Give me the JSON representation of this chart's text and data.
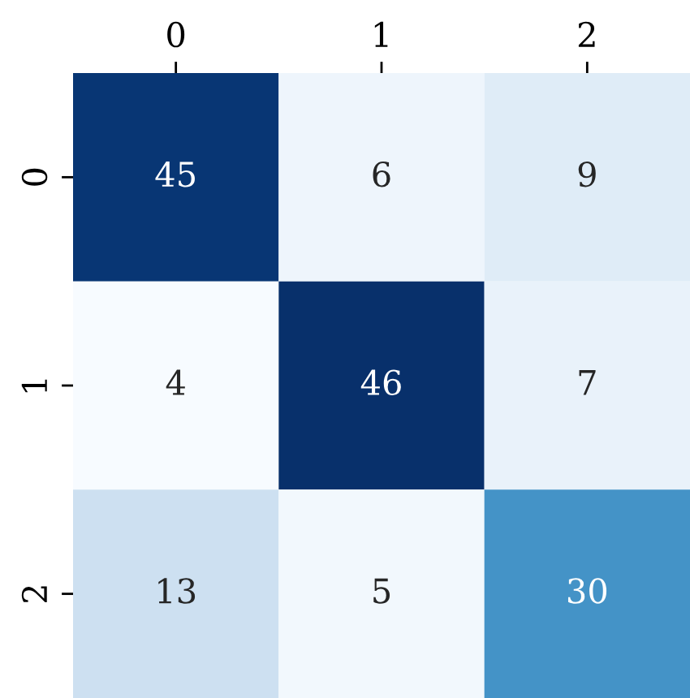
{
  "chart_data": {
    "type": "heatmap",
    "categories": [
      "0",
      "1",
      "2"
    ],
    "y_categories": [
      "0",
      "1",
      "2"
    ],
    "cells": [
      [
        45,
        6,
        9
      ],
      [
        4,
        46,
        7
      ],
      [
        13,
        5,
        30
      ]
    ],
    "data_labels": true
  }
}
